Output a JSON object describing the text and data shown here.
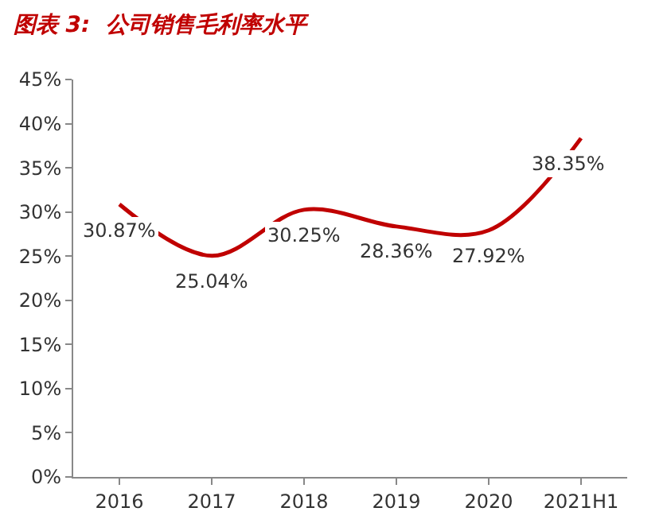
{
  "chart_data": {
    "type": "line",
    "title": "图表 3:  公司销售毛利率水平",
    "categories": [
      "2016",
      "2017",
      "2018",
      "2019",
      "2020",
      "2021H1"
    ],
    "series": [
      {
        "color": "#c00000",
        "values": [
          30.87,
          25.04,
          30.25,
          28.36,
          27.92,
          38.35
        ],
        "value_labels": [
          "30.87%",
          "25.04%",
          "30.25%",
          "28.36%",
          "27.92%",
          "38.35%"
        ]
      }
    ],
    "ylim": [
      0,
      45
    ],
    "yticks": [
      {
        "value": 0,
        "label": "0%"
      },
      {
        "value": 5,
        "label": "5%"
      },
      {
        "value": 10,
        "label": "10%"
      },
      {
        "value": 15,
        "label": "15%"
      },
      {
        "value": 20,
        "label": "20%"
      },
      {
        "value": 25,
        "label": "25%"
      },
      {
        "value": 30,
        "label": "30%"
      },
      {
        "value": 35,
        "label": "35%"
      },
      {
        "value": 40,
        "label": "40%"
      },
      {
        "value": 45,
        "label": "45%"
      }
    ],
    "marker": "none",
    "line_style": "solid"
  }
}
